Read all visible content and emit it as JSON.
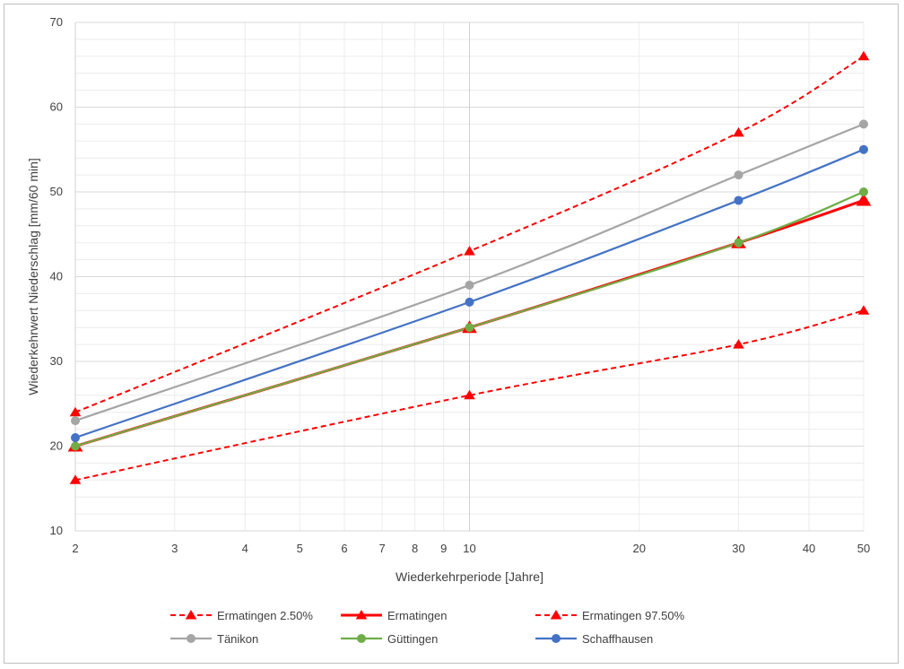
{
  "chart_data": {
    "type": "line",
    "xscale": "log",
    "x": [
      2,
      10,
      30,
      50
    ],
    "xlim": [
      2,
      50
    ],
    "xticks": [
      2,
      3,
      4,
      5,
      6,
      7,
      8,
      9,
      10,
      20,
      30,
      40,
      50
    ],
    "xlabel": "Wiederkehrperiode [Jahre]",
    "ylabel": "Wiederkehrwert Niederschlag [mm/60 min]",
    "ylim": [
      10,
      70
    ],
    "yticks": [
      10,
      20,
      30,
      40,
      50,
      60,
      70
    ],
    "grid": true,
    "legend_position": "bottom",
    "series": [
      {
        "name": "Ermatingen 2.50%",
        "values": [
          16,
          26,
          32,
          36
        ],
        "color": "#ff0000",
        "dash": true,
        "marker": "triangle",
        "width": 2
      },
      {
        "name": "Ermatingen",
        "values": [
          20,
          34,
          44,
          49
        ],
        "color": "#ff0000",
        "dash": false,
        "marker": "triangle-large",
        "width": 3
      },
      {
        "name": "Ermatingen 97.50%",
        "values": [
          24,
          43,
          57,
          66
        ],
        "color": "#ff0000",
        "dash": true,
        "marker": "triangle",
        "width": 2
      },
      {
        "name": "Tänikon",
        "values": [
          23,
          39,
          52,
          58
        ],
        "color": "#a5a5a5",
        "dash": false,
        "marker": "circle",
        "width": 2.2
      },
      {
        "name": "Güttingen",
        "values": [
          20,
          34,
          44,
          50
        ],
        "color": "#70ad47",
        "dash": false,
        "marker": "circle",
        "width": 2.2
      },
      {
        "name": "Schaffhausen",
        "values": [
          21,
          37,
          49,
          55
        ],
        "color": "#4472c4",
        "dash": false,
        "marker": "circle",
        "width": 2.2
      }
    ]
  }
}
